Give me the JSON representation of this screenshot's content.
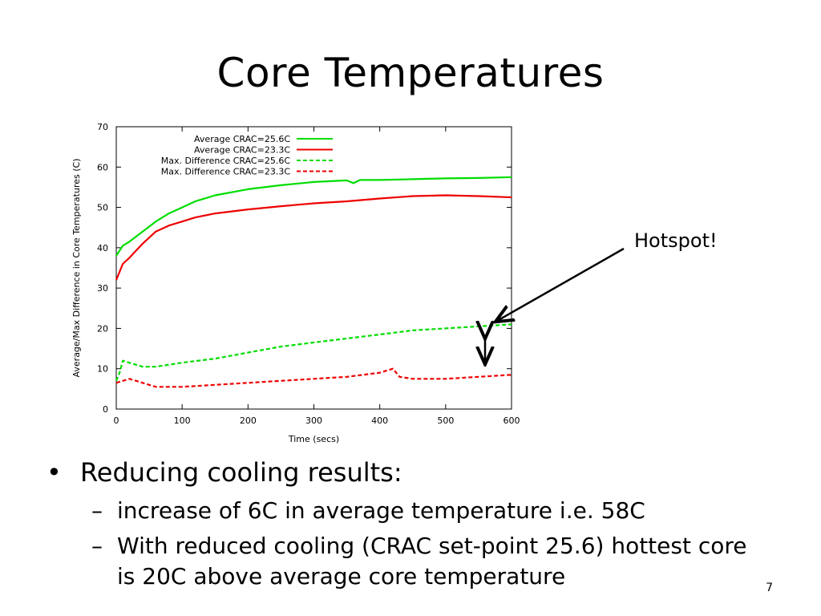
{
  "slide": {
    "title": "Core Temperatures",
    "annotation": "Hotspot!",
    "bullet_main": "Reducing cooling results:",
    "sub_bullets": [
      "increase of 6C in average temperature i.e. 58C",
      "With reduced cooling (CRAC set-point 25.6) hottest core is 20C above average core temperature"
    ],
    "page_number": "7",
    "bullet_symbol": "•",
    "dash_symbol": "–"
  },
  "chart_data": {
    "type": "line",
    "xlabel": "Time (secs)",
    "ylabel": "Average/Max Difference in Core Temperatures (C)",
    "xlim": [
      0,
      600
    ],
    "ylim": [
      0,
      70
    ],
    "xticks": [
      0,
      100,
      200,
      300,
      400,
      500,
      600
    ],
    "yticks": [
      0,
      10,
      20,
      30,
      40,
      50,
      60,
      70
    ],
    "grid": false,
    "legend_position": "top-left",
    "series": [
      {
        "name": "Average CRAC=25.6C",
        "color": "#00dd00",
        "dash": "solid",
        "x": [
          0,
          10,
          20,
          40,
          60,
          80,
          100,
          120,
          150,
          200,
          250,
          300,
          350,
          360,
          370,
          400,
          450,
          500,
          550,
          600
        ],
        "y": [
          38,
          40.5,
          41.5,
          44,
          46.5,
          48.5,
          50,
          51.5,
          53,
          54.5,
          55.5,
          56.3,
          56.7,
          56,
          56.8,
          56.8,
          57,
          57.2,
          57.3,
          57.5
        ]
      },
      {
        "name": "Average CRAC=23.3C",
        "color": "#ee0000",
        "dash": "solid",
        "x": [
          0,
          10,
          20,
          40,
          60,
          80,
          100,
          120,
          150,
          200,
          250,
          300,
          350,
          400,
          450,
          500,
          550,
          600
        ],
        "y": [
          32,
          36,
          37.5,
          41,
          44,
          45.5,
          46.5,
          47.5,
          48.5,
          49.5,
          50.3,
          51,
          51.5,
          52.2,
          52.8,
          53,
          52.8,
          52.5
        ]
      },
      {
        "name": "Max. Difference CRAC=25.6C",
        "color": "#00dd00",
        "dash": "dashed",
        "x": [
          0,
          5,
          10,
          20,
          40,
          60,
          80,
          100,
          150,
          200,
          250,
          300,
          350,
          400,
          450,
          500,
          550,
          600
        ],
        "y": [
          7,
          9,
          12,
          11.5,
          10.5,
          10.5,
          11,
          11.5,
          12.5,
          14,
          15.5,
          16.5,
          17.5,
          18.5,
          19.5,
          20,
          20.5,
          21
        ]
      },
      {
        "name": "Max. Difference CRAC=23.3C",
        "color": "#ee0000",
        "dash": "dashed",
        "x": [
          0,
          10,
          20,
          40,
          60,
          80,
          100,
          150,
          200,
          250,
          300,
          350,
          400,
          420,
          430,
          450,
          500,
          550,
          600
        ],
        "y": [
          6.5,
          7,
          7.5,
          6.5,
          5.5,
          5.5,
          5.5,
          6,
          6.5,
          7,
          7.5,
          8,
          9,
          10,
          8,
          7.5,
          7.5,
          8,
          8.5
        ]
      }
    ]
  }
}
